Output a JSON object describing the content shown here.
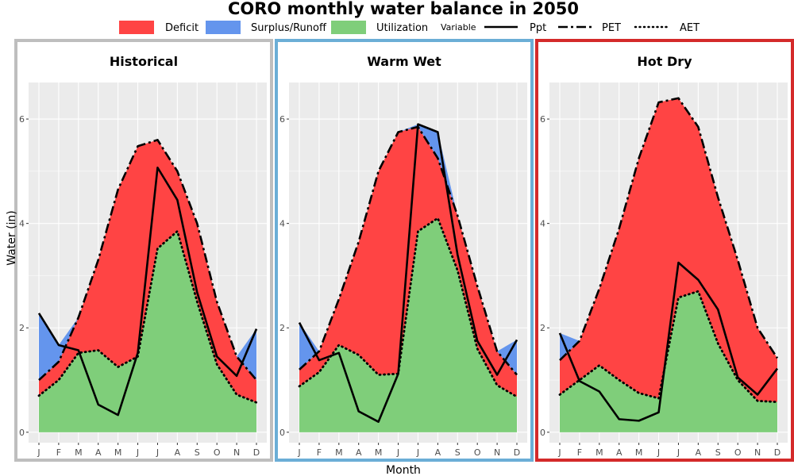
{
  "chart_data": {
    "type": "area",
    "title": "CORO monthly water balance in 2050",
    "xlabel": "Month",
    "ylabel": "Water (in)",
    "ylim": [
      -0.2,
      6.7
    ],
    "yticks": [
      0,
      2,
      4,
      6
    ],
    "categories": [
      "J",
      "F",
      "M",
      "A",
      "M",
      "J",
      "J",
      "A",
      "S",
      "O",
      "N",
      "D"
    ],
    "grid": true,
    "legend": {
      "position": "top",
      "fill_title": "",
      "line_title": "Variable",
      "fill_entries": [
        {
          "name": "Deficit",
          "color": "#ff4444"
        },
        {
          "name": "Surplus/Runoff",
          "color": "#6495ed"
        },
        {
          "name": "Utilization",
          "color": "#7fce7a"
        }
      ],
      "line_entries": [
        {
          "name": "Ppt",
          "style": "solid"
        },
        {
          "name": "PET",
          "style": "longdash"
        },
        {
          "name": "AET",
          "style": "dotted"
        }
      ]
    },
    "colors": {
      "deficit": "#ff4444",
      "surplus": "#6495ed",
      "utilization": "#7fce7a",
      "panel_background": "#ebebeb",
      "grid": "#ffffff"
    },
    "panels": [
      {
        "name": "Historical",
        "border_color": "#bebebe",
        "series": [
          {
            "name": "Ppt",
            "values": [
              2.28,
              1.67,
              1.57,
              0.53,
              0.33,
              1.52,
              5.07,
              4.45,
              2.68,
              1.45,
              1.08,
              1.98
            ]
          },
          {
            "name": "PET",
            "values": [
              1.0,
              1.35,
              2.2,
              3.3,
              4.65,
              5.48,
              5.6,
              5.0,
              4.0,
              2.5,
              1.45,
              1.0
            ]
          },
          {
            "name": "AET",
            "values": [
              0.7,
              1.0,
              1.52,
              1.57,
              1.25,
              1.45,
              3.52,
              3.85,
              2.5,
              1.3,
              0.72,
              0.57
            ]
          }
        ]
      },
      {
        "name": "Warm Wet",
        "border_color": "#6baed6",
        "series": [
          {
            "name": "Ppt",
            "values": [
              2.1,
              1.38,
              1.52,
              0.4,
              0.2,
              1.12,
              5.9,
              5.75,
              3.4,
              1.75,
              1.1,
              1.77
            ]
          },
          {
            "name": "PET",
            "values": [
              1.2,
              1.55,
              2.55,
              3.65,
              5.0,
              5.75,
              5.85,
              5.25,
              4.15,
              2.8,
              1.55,
              1.1
            ]
          },
          {
            "name": "AET",
            "values": [
              0.88,
              1.15,
              1.67,
              1.48,
              1.1,
              1.12,
              3.85,
              4.1,
              3.1,
              1.6,
              0.9,
              0.68
            ]
          }
        ]
      },
      {
        "name": "Hot Dry",
        "border_color": "#d42a2a",
        "series": [
          {
            "name": "Ppt",
            "values": [
              1.9,
              0.98,
              0.78,
              0.25,
              0.22,
              0.38,
              3.25,
              2.92,
              2.35,
              1.05,
              0.72,
              1.22
            ]
          },
          {
            "name": "PET",
            "values": [
              1.38,
              1.75,
              2.75,
              3.9,
              5.25,
              6.32,
              6.4,
              5.85,
              4.5,
              3.3,
              2.0,
              1.42
            ]
          },
          {
            "name": "AET",
            "values": [
              0.72,
              1.0,
              1.28,
              1.0,
              0.75,
              0.65,
              2.58,
              2.7,
              1.7,
              1.0,
              0.6,
              0.58
            ]
          }
        ]
      }
    ]
  }
}
